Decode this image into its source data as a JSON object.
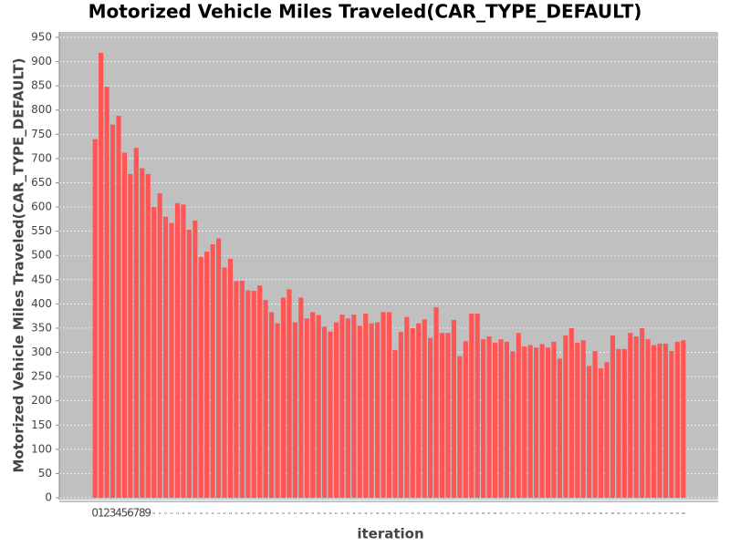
{
  "chart_data": {
    "type": "bar",
    "title": "Motorized Vehicle Miles Traveled(CAR_TYPE_DEFAULT)",
    "x_label": "iteration",
    "y_label": "Motorized Vehicle Miles Traveled(CAR_TYPE_DEFAULT)",
    "categories": [
      "0",
      "1",
      "2",
      "3",
      "4",
      "5",
      "6",
      "7",
      "8",
      "9",
      "10",
      "11",
      "12",
      "13",
      "14",
      "15",
      "16",
      "17",
      "18",
      "19",
      "20",
      "21",
      "22",
      "23",
      "24",
      "25",
      "26",
      "27",
      "28",
      "29",
      "30",
      "31",
      "32",
      "33",
      "34",
      "35",
      "36",
      "37",
      "38",
      "39",
      "40",
      "41",
      "42",
      "43",
      "44",
      "45",
      "46",
      "47",
      "48",
      "49",
      "50",
      "51",
      "52",
      "53",
      "54",
      "55",
      "56",
      "57",
      "58",
      "59",
      "60",
      "61",
      "62",
      "63",
      "64",
      "65",
      "66",
      "67",
      "68",
      "69",
      "70",
      "71",
      "72",
      "73",
      "74",
      "75",
      "76",
      "77",
      "78",
      "79",
      "80",
      "81",
      "82",
      "83",
      "84",
      "85",
      "86",
      "87",
      "88",
      "89",
      "90",
      "91",
      "92",
      "93",
      "94",
      "95",
      "96",
      "97",
      "98",
      "99",
      "100"
    ],
    "values": [
      740,
      918,
      848,
      770,
      788,
      712,
      668,
      722,
      680,
      668,
      600,
      628,
      580,
      567,
      608,
      605,
      553,
      572,
      497,
      508,
      523,
      535,
      475,
      493,
      447,
      448,
      428,
      427,
      438,
      408,
      383,
      360,
      413,
      430,
      362,
      413,
      370,
      383,
      377,
      353,
      343,
      362,
      378,
      370,
      378,
      355,
      380,
      360,
      362,
      383,
      383,
      305,
      342,
      373,
      350,
      360,
      368,
      330,
      393,
      340,
      340,
      367,
      292,
      323,
      380,
      380,
      327,
      333,
      320,
      327,
      322,
      302,
      340,
      312,
      315,
      310,
      317,
      310,
      322,
      287,
      335,
      350,
      320,
      325,
      272,
      303,
      267,
      280,
      335,
      307,
      307,
      340,
      333,
      350,
      327,
      315,
      318,
      318,
      303,
      322,
      325
    ],
    "color": "#ff5555",
    "ylim": [
      0,
      950
    ],
    "yticks": [
      0,
      50,
      100,
      150,
      200,
      250,
      300,
      350,
      400,
      450,
      500,
      550,
      600,
      650,
      700,
      750,
      800,
      850,
      900,
      950
    ],
    "grid": true
  }
}
